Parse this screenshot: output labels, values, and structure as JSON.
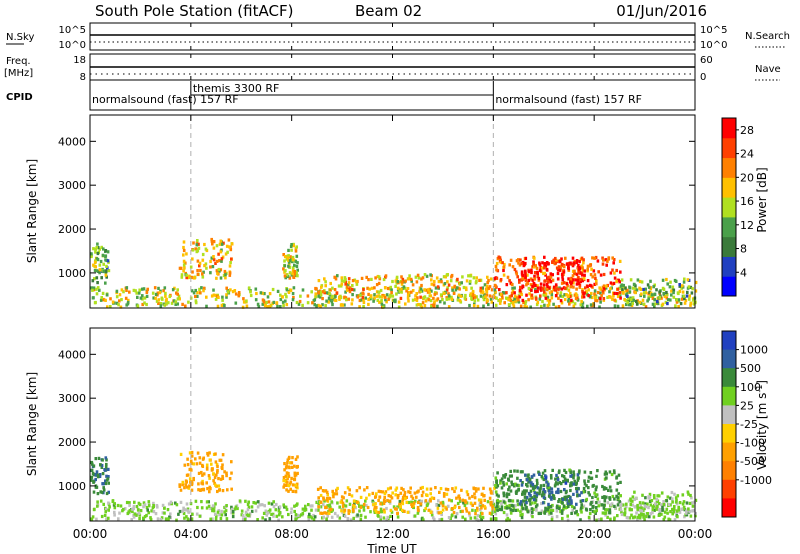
{
  "header": {
    "station": "South Pole Station (fitACF)",
    "beam": "Beam 02",
    "date": "01/Jun/2016"
  },
  "noise_panel": {
    "left_label": "N.Sky",
    "right_label": "N.Search",
    "left_ticks": [
      "10^5",
      "10^0"
    ],
    "right_ticks": [
      "10^5",
      "10^0"
    ]
  },
  "freq_panel": {
    "left_label_1": "Freq.",
    "left_label_2": "[MHz]",
    "right_label": "Nave",
    "left_ticks": [
      "18",
      "8"
    ],
    "right_ticks": [
      "60",
      "0"
    ]
  },
  "cpid_panel": {
    "label": "CPID",
    "segments": [
      {
        "text": "normalsound (fast) 157 RF",
        "start_hour": 0,
        "end_hour": 16
      },
      {
        "text": "themis 3300 RF",
        "start_hour": 4,
        "end_hour": 16
      },
      {
        "text": "normalsound (fast) 157 RF",
        "start_hour": 16,
        "end_hour": 24
      }
    ]
  },
  "time_axis": {
    "label": "Time UT",
    "ticks": [
      "00:00",
      "04:00",
      "08:00",
      "12:00",
      "16:00",
      "20:00",
      "00:00"
    ],
    "tick_hours": [
      0,
      4,
      8,
      12,
      16,
      20,
      24
    ],
    "range_hours": [
      0,
      24
    ]
  },
  "colors": {
    "power_scale": [
      "#0000ff",
      "#2040c0",
      "#3a7a3a",
      "#4aa04a",
      "#b0e020",
      "#ffc000",
      "#ff8000",
      "#ff4000",
      "#ff0000"
    ],
    "velocity_scale": [
      "#2040c0",
      "#3060a0",
      "#3a8a3a",
      "#70d020",
      "#c0c0c0",
      "#ffd000",
      "#ffa000",
      "#ff8000",
      "#ff4000",
      "#ff0000"
    ]
  },
  "chart_data": [
    {
      "type": "heatmap",
      "quantity": "power",
      "ylabel": "Slant Range [km]",
      "ylim": [
        200,
        4600
      ],
      "yticks": [
        1000,
        2000,
        3000,
        4000
      ],
      "colorbar": {
        "label": "Power [dB]",
        "ticks": [
          "28",
          "24",
          "20",
          "16",
          "12",
          "8",
          "4"
        ],
        "range": [
          0,
          30
        ]
      },
      "patches": [
        {
          "t0": 0.0,
          "t1": 0.7,
          "r0": 800,
          "r1": 1700,
          "value": 12
        },
        {
          "t0": 0.0,
          "t1": 24.0,
          "r0": 250,
          "r1": 700,
          "value": 16
        },
        {
          "t0": 3.5,
          "t1": 5.6,
          "r0": 900,
          "r1": 1800,
          "value": 18
        },
        {
          "t0": 7.6,
          "t1": 8.2,
          "r0": 900,
          "r1": 1700,
          "value": 16
        },
        {
          "t0": 9.0,
          "t1": 16.0,
          "r0": 400,
          "r1": 1000,
          "value": 18
        },
        {
          "t0": 16.0,
          "t1": 21.0,
          "r0": 400,
          "r1": 1400,
          "value": 24
        },
        {
          "t0": 17.0,
          "t1": 19.5,
          "r0": 600,
          "r1": 1300,
          "value": 28
        },
        {
          "t0": 21.0,
          "t1": 24.0,
          "r0": 300,
          "r1": 900,
          "value": 12
        }
      ]
    },
    {
      "type": "heatmap",
      "quantity": "velocity",
      "ylabel": "Slant Range [km]",
      "ylim": [
        200,
        4600
      ],
      "yticks": [
        1000,
        2000,
        3000,
        4000
      ],
      "colorbar": {
        "label": "Velocity [m s^-1]",
        "ticks": [
          "1000",
          "500",
          "100",
          "25",
          "-25",
          "-100",
          "-500",
          "-1000"
        ]
      },
      "patches": [
        {
          "t0": 0.0,
          "t1": 0.7,
          "r0": 800,
          "r1": 1700,
          "value": 400
        },
        {
          "t0": 0.0,
          "t1": 24.0,
          "r0": 250,
          "r1": 700,
          "value": 50
        },
        {
          "t0": 3.5,
          "t1": 5.6,
          "r0": 900,
          "r1": 1800,
          "value": -200
        },
        {
          "t0": 7.6,
          "t1": 8.2,
          "r0": 900,
          "r1": 1700,
          "value": -200
        },
        {
          "t0": 9.0,
          "t1": 16.0,
          "r0": 400,
          "r1": 1000,
          "value": -150
        },
        {
          "t0": 16.0,
          "t1": 21.0,
          "r0": 400,
          "r1": 1400,
          "value": 200
        },
        {
          "t0": 17.0,
          "t1": 19.5,
          "r0": 600,
          "r1": 1300,
          "value": 600
        },
        {
          "t0": 21.0,
          "t1": 24.0,
          "r0": 300,
          "r1": 900,
          "value": 50
        }
      ]
    }
  ]
}
